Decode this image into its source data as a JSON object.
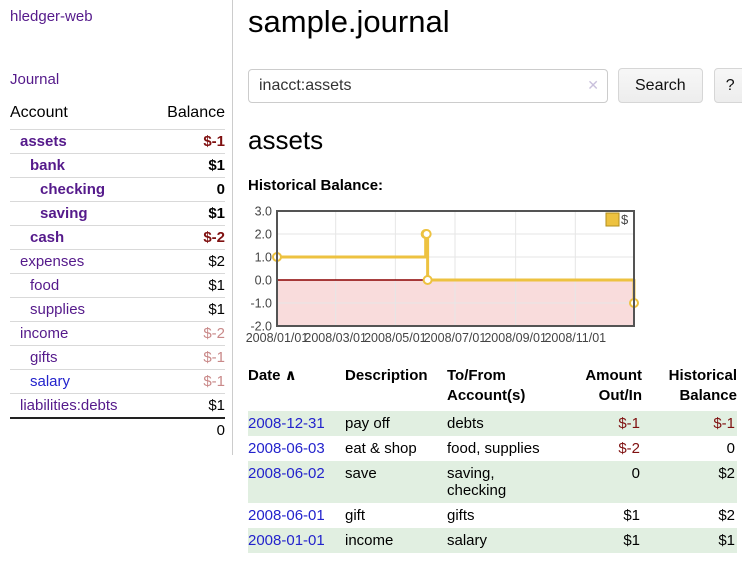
{
  "colors": {
    "link_purple": "#551a8b",
    "link_blue": "#2323cc",
    "negative_strong": "#7f1010",
    "negative_soft": "#c98989",
    "row_shade_green": "#e1efe1",
    "series_gold": "#edc240",
    "legend_square_border": "#b28f1e",
    "zero_line_red": "#8b0000",
    "negative_region_pink": "#f9dcdc",
    "chart_border_gray": "#545454"
  },
  "sidebar": {
    "brand": "hledger-web",
    "journal_link": "Journal",
    "accounts": {
      "col_account": "Account",
      "col_balance": "Balance",
      "rows": [
        {
          "name": "assets",
          "indent": 1,
          "bold": true,
          "link_color": "purple",
          "balance": "$-1",
          "balance_style": "neg-strong"
        },
        {
          "name": "bank",
          "indent": 2,
          "bold": true,
          "link_color": "purple",
          "balance": "$1",
          "balance_style": "plain"
        },
        {
          "name": "checking",
          "indent": 3,
          "bold": true,
          "link_color": "purple",
          "balance": "0",
          "balance_style": "plain"
        },
        {
          "name": "saving",
          "indent": 3,
          "bold": true,
          "link_color": "purple",
          "balance": "$1",
          "balance_style": "plain"
        },
        {
          "name": "cash",
          "indent": 2,
          "bold": true,
          "link_color": "purple",
          "balance": "$-2",
          "balance_style": "neg-strong"
        },
        {
          "name": "expenses",
          "indent": 1,
          "bold": false,
          "link_color": "purple",
          "balance": "$2",
          "balance_style": "plain"
        },
        {
          "name": "food",
          "indent": 2,
          "bold": false,
          "link_color": "purple",
          "balance": "$1",
          "balance_style": "plain"
        },
        {
          "name": "supplies",
          "indent": 2,
          "bold": false,
          "link_color": "purple",
          "balance": "$1",
          "balance_style": "plain"
        },
        {
          "name": "income",
          "indent": 1,
          "bold": false,
          "link_color": "purple",
          "balance": "$-2",
          "balance_style": "neg-soft"
        },
        {
          "name": "gifts",
          "indent": 2,
          "bold": false,
          "link_color": "purple",
          "balance": "$-1",
          "balance_style": "neg-soft"
        },
        {
          "name": "salary",
          "indent": 2,
          "bold": false,
          "link_color": "blue",
          "balance": "$-1",
          "balance_style": "neg-soft"
        },
        {
          "name": "liabilities:debts",
          "indent": 1,
          "bold": false,
          "link_color": "purple",
          "balance": "$1",
          "balance_style": "plain"
        }
      ],
      "total": "0"
    }
  },
  "main": {
    "title": "sample.journal",
    "search": {
      "value": "inacct:assets",
      "clear_icon": "✕",
      "search_button": "Search",
      "help_button": "?"
    },
    "account_heading": "assets",
    "chart_heading": "Historical Balance:",
    "register": {
      "columns": [
        {
          "id": "date",
          "lines": [
            "Date"
          ],
          "align": "left",
          "sort_arrow": "∧"
        },
        {
          "id": "desc",
          "lines": [
            "Description"
          ],
          "align": "left"
        },
        {
          "id": "accounts",
          "lines": [
            "To/From",
            "Account(s)"
          ],
          "align": "left"
        },
        {
          "id": "amount",
          "lines": [
            "Amount",
            "Out/In"
          ],
          "align": "right"
        },
        {
          "id": "balance",
          "lines": [
            "Historical",
            "Balance"
          ],
          "align": "right"
        }
      ],
      "rows": [
        {
          "date": "2008-12-31",
          "description": "pay off",
          "accounts": [
            "debts"
          ],
          "amount": "$-1",
          "amount_negative": true,
          "balance": "$-1",
          "balance_negative": true,
          "shaded": true
        },
        {
          "date": "2008-06-03",
          "description": "eat & shop",
          "accounts": [
            "food, supplies"
          ],
          "amount": "$-2",
          "amount_negative": true,
          "balance": "0",
          "balance_negative": false,
          "shaded": false
        },
        {
          "date": "2008-06-02",
          "description": "save",
          "accounts": [
            "saving,",
            "checking"
          ],
          "amount": "0",
          "amount_negative": false,
          "balance": "$2",
          "balance_negative": false,
          "shaded": true
        },
        {
          "date": "2008-06-01",
          "description": "gift",
          "accounts": [
            "gifts"
          ],
          "amount": "$1",
          "amount_negative": false,
          "balance": "$2",
          "balance_negative": false,
          "shaded": false
        },
        {
          "date": "2008-01-01",
          "description": "income",
          "accounts": [
            "salary"
          ],
          "amount": "$1",
          "amount_negative": false,
          "balance": "$1",
          "balance_negative": false,
          "shaded": true
        }
      ]
    }
  },
  "chart_data": {
    "type": "line",
    "title": "Historical Balance:",
    "step": true,
    "grid": true,
    "legend_position": "top-right",
    "x_range": [
      "2008-01-01",
      "2008-12-31"
    ],
    "x_tick_labels": [
      "2008/01/01",
      "2008/03/01",
      "2008/05/01",
      "2008/07/01",
      "2008/09/01",
      "2008/11/01"
    ],
    "y_tick_labels": [
      "3.0",
      "2.0",
      "1.0",
      "0.0",
      "-1.0",
      "-2.0"
    ],
    "ylim": [
      -2,
      3
    ],
    "negative_region": true,
    "series": [
      {
        "name": "$",
        "color": "#edc240",
        "points": [
          [
            "2008-01-01",
            1
          ],
          [
            "2008-06-01",
            2
          ],
          [
            "2008-06-02",
            2
          ],
          [
            "2008-06-03",
            0
          ],
          [
            "2008-12-31",
            -1
          ]
        ]
      }
    ]
  }
}
